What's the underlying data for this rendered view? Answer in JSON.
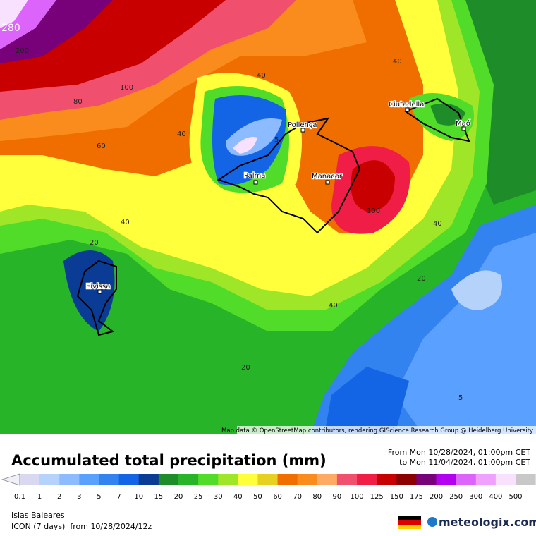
{
  "map": {
    "contour_labels": [
      "280",
      "200",
      "100",
      "80",
      "60",
      "40",
      "40",
      "40",
      "40",
      "40",
      "40",
      "100",
      "20",
      "20",
      "20",
      "5",
      "5"
    ],
    "places": [
      "Pollença",
      "Palma",
      "Manacor",
      "Ciutadella",
      "Maó",
      "Eivissa"
    ],
    "attribution": "Map data © OpenStreetMap contributors, rendering GIScience Research Group @ Heidelberg University"
  },
  "legend": {
    "title": "Accumulated total precipitation (mm)",
    "period": [
      "From Mon 10/28/2024, 01:00pm CET",
      "to Mon 11/04/2024, 01:00pm CET"
    ],
    "labels": [
      "0.1",
      "1",
      "2",
      "3",
      "5",
      "7",
      "10",
      "15",
      "20",
      "25",
      "30",
      "40",
      "50",
      "60",
      "70",
      "80",
      "90",
      "100",
      "125",
      "150",
      "175",
      "200",
      "250",
      "300",
      "400",
      "500"
    ],
    "colors": [
      "#d8d8f0",
      "#b4d2fa",
      "#8cbcff",
      "#5aa0ff",
      "#3282f0",
      "#1464e6",
      "#0a3c96",
      "#1e8c28",
      "#28b428",
      "#50dc28",
      "#a0e628",
      "#ffff3c",
      "#e6d21e",
      "#f06e00",
      "#fa8c1e",
      "#ffaa64",
      "#f0506e",
      "#f01e46",
      "#c80000",
      "#8c0000",
      "#780078",
      "#b400f0",
      "#dc64fa",
      "#f0a0ff",
      "#f8e0ff",
      "#c8c8c8"
    ]
  },
  "footer": {
    "region": "Islas Baleares",
    "model": "ICON (7 days)  from 10/28/2024/12z",
    "brand": "meteologix.com"
  }
}
